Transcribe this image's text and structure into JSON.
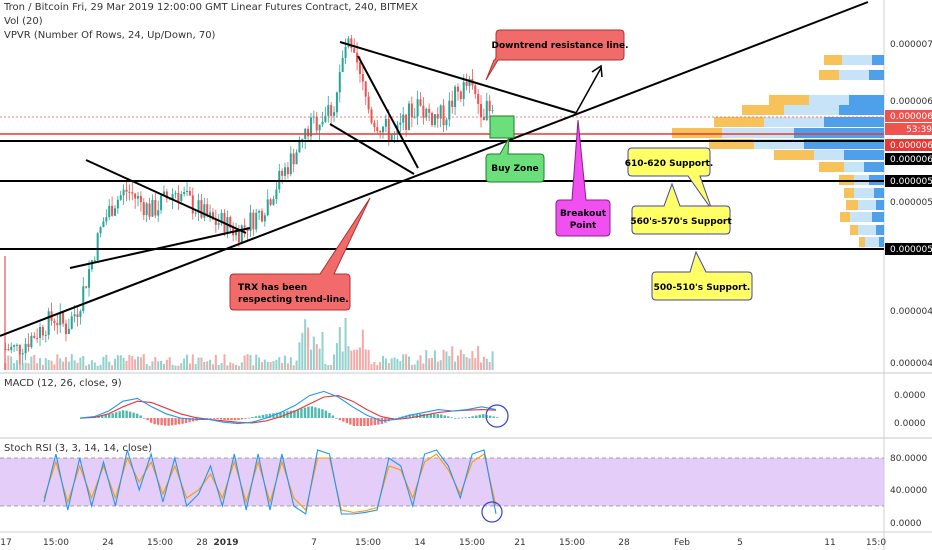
{
  "header": {
    "title": "Tron / Bitcoin Fri, 29 Mar 2019 12:00:00 GMT Linear Futures Contract, 240, BITMEX",
    "vol": "Vol (20)",
    "vpvr": "VPVR (Number Of Rows, 24, Up/Down, 70)"
  },
  "panes": {
    "macd_label": "MACD (12, 26, close, 9)",
    "stoch_label": "Stoch RSI (3, 3, 14, 14, close)"
  },
  "colors": {
    "up": "#26a69a",
    "down": "#ef5350",
    "macd_line": "#2196f3",
    "signal_line": "#e53935",
    "stoch_k": "#2196f3",
    "stoch_d": "#ff9800",
    "stoch_band": "#d9b8f5",
    "callout_red": "#f26b6b",
    "callout_green": "#6be07a",
    "callout_magenta": "#f050f0",
    "callout_yellow": "#ffff66"
  },
  "axis": {
    "price_ticks": [
      "0.00000700",
      "0.00000650",
      "0.00000550",
      "0.00000450",
      "0.00000400"
    ],
    "price_labels": [
      {
        "text": "0.00000633",
        "color": "#ef5350"
      },
      {
        "text": "53:39",
        "color": "#ef5350"
      },
      {
        "text": "0.00000614",
        "color": "#e53935"
      },
      {
        "text": "0.00000610",
        "color": "#000000"
      },
      {
        "text": "0.00000570",
        "color": "#000000"
      },
      {
        "text": "0.00000505",
        "color": "#000000"
      }
    ],
    "macd_ticks": [
      "0.0000",
      "0.0000"
    ],
    "stoch_ticks": [
      "80.0000",
      "40.0000",
      "0.0000"
    ],
    "time_ticks": [
      "17",
      "15:00",
      "24",
      "15:00",
      "28",
      "2019",
      "7",
      "15:00",
      "14",
      "15:00",
      "21",
      "15:00",
      "28",
      "Feb",
      "5",
      "11",
      "15:0"
    ]
  },
  "annotations": {
    "downtrend": "Downtrend resistance line.",
    "buy_zone": "Buy Zone",
    "breakout": [
      "Breakout",
      "Point"
    ],
    "trx": [
      "TRX has been",
      "respecting trend-line."
    ],
    "s610": "610-620 Support.",
    "s560": "560's-570's Support",
    "s500": "500-510's Support."
  },
  "chart_data": {
    "type": "candlestick",
    "symbol": "Tron / Bitcoin",
    "timeframe": "240",
    "ylim": [
      3.9e-06,
      7.4e-06
    ],
    "horizontal_levels": [
      6.14e-06,
      6.1e-06,
      5.7e-06,
      5.05e-06
    ],
    "last_price": 6.33e-06,
    "price_path": [
      4.1e-06,
      4.1e-06,
      4.2e-06,
      4.3e-06,
      4.4e-06,
      4.3e-06,
      4.5e-06,
      4.9e-06,
      5.3e-06,
      5.5e-06,
      5.6e-06,
      5.5e-06,
      5.4e-06,
      5.5e-06,
      5.6e-06,
      5.5e-06,
      5.4e-06,
      5.3e-06,
      5.3e-06,
      5.2e-06,
      5.3e-06,
      5.4e-06,
      5.6e-06,
      5.8e-06,
      6e-06,
      6.2e-06,
      6.3e-06,
      6.4e-06,
      7e-06,
      6.7e-06,
      6.3e-06,
      6.2e-06,
      6.1e-06,
      6.3e-06,
      6.4e-06,
      6.3e-06,
      6.3e-06,
      6.5e-06,
      6.6e-06,
      6.4e-06,
      6.3e-06
    ],
    "macd_path": [
      0,
      0.05,
      0.25,
      0.6,
      0.7,
      0.4,
      0.15,
      0.0,
      -0.05,
      -0.05,
      -0.15,
      -0.2,
      -0.15,
      0.0,
      0.2,
      0.45,
      0.8,
      0.95,
      0.75,
      0.4,
      0.1,
      -0.1,
      -0.05,
      0.1,
      0.2,
      0.3,
      0.25,
      0.3,
      0.4,
      0.3
    ],
    "signal_path": [
      0,
      0.02,
      0.15,
      0.4,
      0.6,
      0.55,
      0.35,
      0.15,
      0.02,
      -0.05,
      -0.1,
      -0.15,
      -0.18,
      -0.1,
      0.05,
      0.25,
      0.5,
      0.75,
      0.8,
      0.6,
      0.3,
      0.05,
      -0.05,
      0.0,
      0.1,
      0.2,
      0.25,
      0.28,
      0.3,
      0.28
    ],
    "stoch_k": [
      25,
      85,
      15,
      80,
      20,
      75,
      20,
      90,
      40,
      85,
      25,
      80,
      20,
      35,
      70,
      20,
      85,
      15,
      85,
      15,
      85,
      20,
      10,
      90,
      85,
      10,
      10,
      12,
      15,
      80,
      70,
      20,
      85,
      90,
      70,
      30,
      85,
      90,
      10
    ],
    "stoch_d": [
      30,
      75,
      25,
      70,
      30,
      70,
      30,
      80,
      50,
      75,
      35,
      70,
      30,
      40,
      60,
      30,
      75,
      25,
      75,
      25,
      75,
      30,
      15,
      80,
      80,
      15,
      12,
      14,
      18,
      70,
      65,
      30,
      75,
      85,
      65,
      35,
      75,
      85,
      20
    ]
  }
}
